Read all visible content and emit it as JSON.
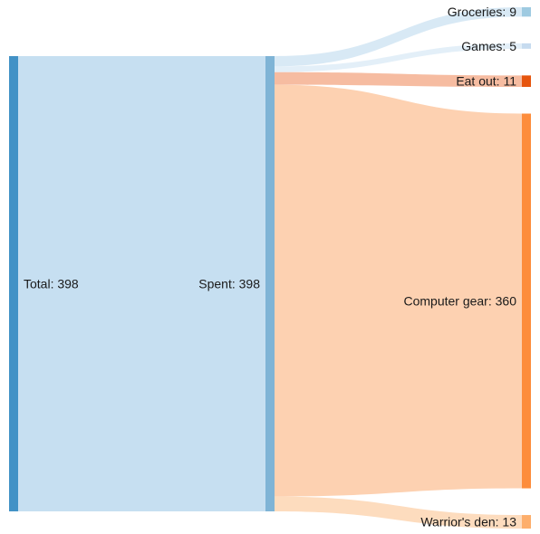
{
  "chart_data": {
    "type": "sankey",
    "title": "",
    "nodes": [
      {
        "id": "total",
        "label": "Total",
        "value": 398,
        "color": "#4292c6"
      },
      {
        "id": "spent",
        "label": "Spent",
        "value": 398,
        "color": "#7fb4d6"
      },
      {
        "id": "groceries",
        "label": "Groceries",
        "value": 9,
        "color": "#9ecae1"
      },
      {
        "id": "games",
        "label": "Games",
        "value": 5,
        "color": "#c6dbef"
      },
      {
        "id": "eatout",
        "label": "Eat out",
        "value": 11,
        "color": "#e6550d"
      },
      {
        "id": "computer",
        "label": "Computer gear",
        "value": 360,
        "color": "#fd8d3c"
      },
      {
        "id": "warrior",
        "label": "Warrior's den",
        "value": 13,
        "color": "#fdae6b"
      }
    ],
    "links": [
      {
        "source": "total",
        "target": "spent",
        "value": 398,
        "color": "#c6dff1"
      },
      {
        "source": "spent",
        "target": "groceries",
        "value": 9,
        "color": "#d8e9f5"
      },
      {
        "source": "spent",
        "target": "games",
        "value": 5,
        "color": "#e3eff8"
      },
      {
        "source": "spent",
        "target": "eatout",
        "value": 11,
        "color": "#f6bca1"
      },
      {
        "source": "spent",
        "target": "computer",
        "value": 360,
        "color": "#fdd1b1"
      },
      {
        "source": "spent",
        "target": "warrior",
        "value": 13,
        "color": "#fddcbe"
      }
    ]
  }
}
